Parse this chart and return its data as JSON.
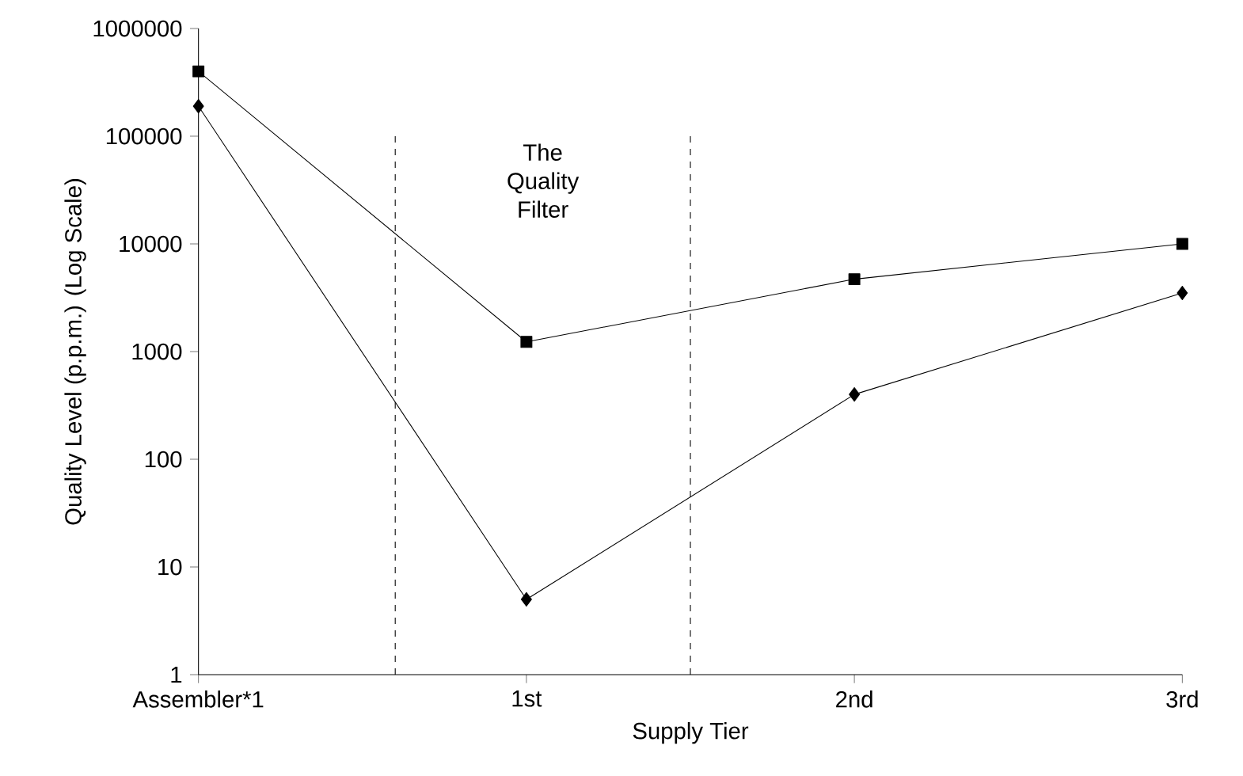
{
  "chart_data": {
    "type": "line",
    "xlabel": "Supply Tier",
    "ylabel": "Quality Level (p.p.m.) (Log Scale)",
    "categories": [
      "Assembler*1",
      "1st",
      "2nd",
      "3rd"
    ],
    "series": [
      {
        "color": "#000000",
        "marker": "square",
        "values": [
          400000,
          1230,
          4700,
          10000
        ]
      },
      {
        "color": "#000000",
        "marker": "diamond",
        "values": [
          190000,
          5,
          400,
          3500
        ]
      }
    ],
    "log": "y",
    "ylim": [
      1,
      1000000
    ],
    "yticks": [
      1,
      10,
      100,
      1000,
      10000,
      100000,
      1000000
    ],
    "annotations": [
      "The Quality Filter"
    ]
  }
}
